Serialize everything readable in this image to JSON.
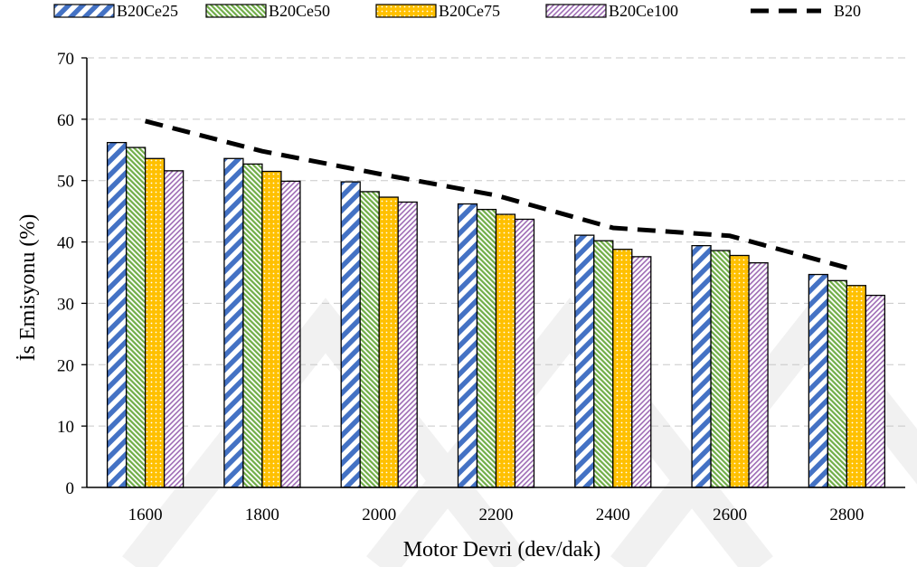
{
  "chart_data": {
    "type": "bar",
    "xlabel": "Motor Devri (dev/dak)",
    "ylabel": "İs Emisyonu (%)",
    "categories": [
      "1600",
      "1800",
      "2000",
      "2200",
      "2400",
      "2600",
      "2800"
    ],
    "ylim": [
      0,
      70
    ],
    "yticks": [
      0,
      10,
      20,
      30,
      40,
      50,
      60,
      70
    ],
    "grid": "horizontal dashed",
    "legend_position": "top",
    "series": [
      {
        "name": "B20Ce25",
        "kind": "bar",
        "pattern": "wide diagonal stripes",
        "color": "#4472C4",
        "values": [
          56.2,
          53.6,
          49.8,
          46.2,
          41.1,
          39.4,
          34.7
        ]
      },
      {
        "name": "B20Ce50",
        "kind": "bar",
        "pattern": "fine diagonal stripes",
        "color": "#70AD47",
        "values": [
          55.4,
          52.7,
          48.2,
          45.3,
          40.2,
          38.6,
          33.7
        ]
      },
      {
        "name": "B20Ce75",
        "kind": "bar",
        "pattern": "dotted",
        "color": "#FFC000",
        "values": [
          53.6,
          51.5,
          47.3,
          44.5,
          38.8,
          37.8,
          32.9
        ]
      },
      {
        "name": "B20Ce100",
        "kind": "bar",
        "pattern": "fine diagonal stripes",
        "color": "#9E6BB5",
        "values": [
          51.6,
          49.9,
          46.5,
          43.7,
          37.6,
          36.6,
          31.3
        ]
      },
      {
        "name": "B20",
        "kind": "line",
        "style": "dashed",
        "color": "#000000",
        "values": [
          59.7,
          54.8,
          51.1,
          47.6,
          42.3,
          41.0,
          35.8
        ]
      }
    ]
  }
}
